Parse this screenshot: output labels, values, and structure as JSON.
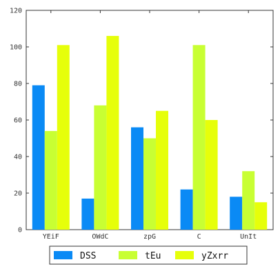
{
  "chart_data": {
    "type": "bar",
    "categories": [
      "YEiF",
      "OWdC",
      "zpG",
      "C",
      "UnIt"
    ],
    "series": [
      {
        "name": "DSS",
        "color": "#0a8af5",
        "values": [
          79,
          17,
          56,
          22,
          18
        ]
      },
      {
        "name": "tEu",
        "color": "#c8ff33",
        "values": [
          54,
          68,
          50,
          101,
          32
        ]
      },
      {
        "name": "yZxrr",
        "color": "#e6ff0a",
        "values": [
          101,
          106,
          65,
          60,
          15
        ]
      }
    ],
    "ylim": [
      0,
      120
    ],
    "yticks": [
      0,
      20,
      40,
      60,
      80,
      100,
      120
    ],
    "grid": false,
    "legend_position": "bottom-center"
  }
}
